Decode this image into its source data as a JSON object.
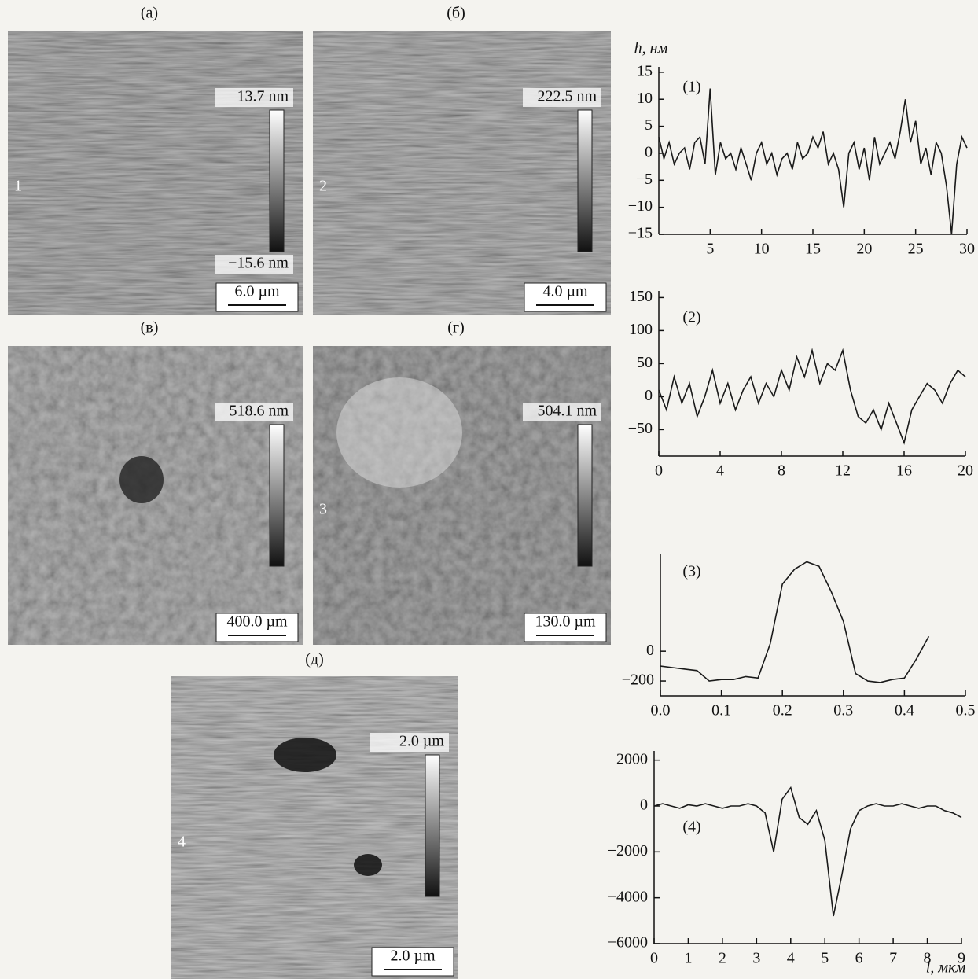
{
  "panels": [
    {
      "letter": "(а)",
      "number": "1",
      "scale_top": "13.7 nm",
      "scale_bottom": "−15.6 nm",
      "scale_bar": "6.0 µm"
    },
    {
      "letter": "(б)",
      "number": "2",
      "scale_top": "222.5 nm",
      "scale_bar": "4.0 µm"
    },
    {
      "letter": "(в)",
      "scale_top": "518.6 nm",
      "scale_bar": "400.0 µm"
    },
    {
      "letter": "(г)",
      "number": "3",
      "scale_top": "504.1 nm",
      "scale_bar": "130.0 µm"
    },
    {
      "letter": "(д)",
      "number": "4",
      "scale_top": "2.0 µm",
      "scale_bar": "2.0 µm"
    }
  ],
  "chart_data": [
    {
      "type": "line",
      "title": "(1)",
      "ylabel": "h, нм",
      "x": [
        0,
        0.5,
        1,
        1.5,
        2,
        2.5,
        3,
        3.5,
        4,
        4.5,
        5,
        5.5,
        6,
        6.5,
        7,
        7.5,
        8,
        8.5,
        9,
        9.5,
        10,
        10.5,
        11,
        11.5,
        12,
        12.5,
        13,
        13.5,
        14,
        14.5,
        15,
        15.5,
        16,
        16.5,
        17,
        17.5,
        18,
        18.5,
        19,
        19.5,
        20,
        20.5,
        21,
        21.5,
        22,
        22.5,
        23,
        23.5,
        24,
        24.5,
        25,
        25.5,
        26,
        26.5,
        27,
        27.5,
        28,
        28.5,
        29,
        29.5,
        30
      ],
      "series": [
        {
          "color": "#1a1a1a",
          "values": [
            3,
            -1,
            2,
            -2,
            0,
            1,
            -3,
            2,
            3,
            -2,
            12,
            -4,
            2,
            -1,
            0,
            -3,
            1,
            -2,
            -5,
            0,
            2,
            -2,
            0,
            -4,
            -1,
            0,
            -3,
            2,
            -1,
            0,
            3,
            1,
            4,
            -2,
            0,
            -3,
            -10,
            0,
            2,
            -3,
            1,
            -5,
            3,
            -2,
            0,
            2,
            -1,
            4,
            10,
            2,
            6,
            -2,
            1,
            -4,
            2,
            0,
            -6,
            -15,
            -2,
            3,
            1
          ]
        }
      ],
      "xlim": [
        0,
        30
      ],
      "ylim": [
        -15,
        16
      ],
      "xticks": [
        5,
        10,
        15,
        20,
        25,
        30
      ],
      "yticks": [
        15,
        10,
        5,
        0,
        {
          "value": -5,
          "label": "−5"
        },
        {
          "value": -10,
          "label": "−10"
        },
        {
          "value": -15,
          "label": "−15"
        }
      ]
    },
    {
      "type": "line",
      "title": "(2)",
      "x": [
        0,
        0.5,
        1,
        1.5,
        2,
        2.5,
        3,
        3.5,
        4,
        4.5,
        5,
        5.5,
        6,
        6.5,
        7,
        7.5,
        8,
        8.5,
        9,
        9.5,
        10,
        10.5,
        11,
        11.5,
        12,
        12.5,
        13,
        13.5,
        14,
        14.5,
        15,
        15.5,
        16,
        16.5,
        17,
        17.5,
        18,
        18.5,
        19,
        19.5,
        20
      ],
      "series": [
        {
          "color": "#1a1a1a",
          "values": [
            10,
            -20,
            30,
            -10,
            20,
            -30,
            0,
            40,
            -10,
            20,
            -20,
            10,
            30,
            -10,
            20,
            0,
            40,
            10,
            60,
            30,
            70,
            20,
            50,
            40,
            70,
            10,
            -30,
            -40,
            -20,
            -50,
            -10,
            -40,
            -70,
            -20,
            0,
            20,
            10,
            -10,
            20,
            40,
            30
          ]
        }
      ],
      "xlim": [
        0,
        20
      ],
      "ylim": [
        -90,
        160
      ],
      "xticks": [
        0,
        4,
        8,
        12,
        16,
        20
      ],
      "yticks": [
        150,
        100,
        50,
        0,
        {
          "value": -50,
          "label": "−50"
        }
      ]
    },
    {
      "type": "line",
      "title": "(3)",
      "x": [
        0,
        0.02,
        0.04,
        0.06,
        0.08,
        0.1,
        0.12,
        0.14,
        0.16,
        0.18,
        0.2,
        0.22,
        0.24,
        0.26,
        0.28,
        0.3,
        0.32,
        0.34,
        0.36,
        0.38,
        0.4,
        0.42,
        0.44
      ],
      "series": [
        {
          "color": "#1a1a1a",
          "values": [
            -100,
            -110,
            -120,
            -130,
            -200,
            -190,
            -190,
            -170,
            -180,
            50,
            450,
            550,
            600,
            570,
            400,
            200,
            -150,
            -200,
            -210,
            -190,
            -180,
            -50,
            100
          ]
        }
      ],
      "xlim": [
        0,
        0.5
      ],
      "ylim": [
        -300,
        650
      ],
      "xticks": [
        {
          "value": 0,
          "label": "0.0"
        },
        0.1,
        0.2,
        0.3,
        0.4,
        0.5
      ],
      "yticks": [
        0,
        {
          "value": -200,
          "label": "−200"
        }
      ]
    },
    {
      "type": "line",
      "title": "(4)",
      "xlabel": "l, мкм",
      "x": [
        0,
        0.25,
        0.5,
        0.75,
        1,
        1.25,
        1.5,
        1.75,
        2,
        2.25,
        2.5,
        2.75,
        3,
        3.25,
        3.5,
        3.75,
        4,
        4.25,
        4.5,
        4.75,
        5,
        5.25,
        5.5,
        5.75,
        6,
        6.25,
        6.5,
        6.75,
        7,
        7.25,
        7.5,
        7.75,
        8,
        8.25,
        8.5,
        8.75,
        9
      ],
      "series": [
        {
          "color": "#1a1a1a",
          "values": [
            0,
            100,
            0,
            -100,
            50,
            0,
            100,
            0,
            -100,
            0,
            0,
            100,
            0,
            -300,
            -2000,
            300,
            800,
            -500,
            -800,
            -200,
            -1500,
            -4800,
            -3000,
            -1000,
            -200,
            0,
            100,
            0,
            0,
            100,
            0,
            -100,
            0,
            0,
            -200,
            -300,
            -500
          ]
        }
      ],
      "xlim": [
        0,
        9
      ],
      "ylim": [
        -6000,
        2400
      ],
      "xticks": [
        0,
        1,
        2,
        3,
        4,
        5,
        6,
        7,
        8,
        9
      ],
      "yticks": [
        2000,
        0,
        {
          "value": -2000,
          "label": "−2000"
        },
        {
          "value": -4000,
          "label": "−4000"
        },
        {
          "value": -6000,
          "label": "−6000"
        }
      ]
    }
  ]
}
